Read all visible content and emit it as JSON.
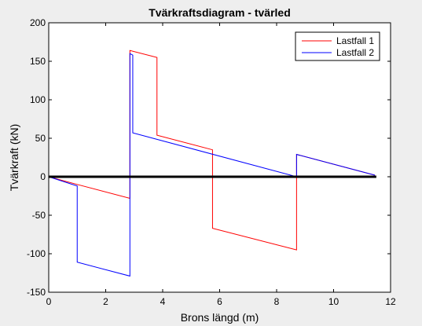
{
  "chart_data": {
    "type": "line",
    "title": "Tvärkraftsdiagram - tvärled",
    "xlabel": "Brons längd (m)",
    "ylabel": "Tvärkraft (kN)",
    "xlim": [
      0,
      12
    ],
    "ylim": [
      -150,
      200
    ],
    "xticks": [
      0,
      2,
      4,
      6,
      8,
      10,
      12
    ],
    "yticks": [
      -150,
      -100,
      -50,
      0,
      50,
      100,
      150,
      200
    ],
    "grid": false,
    "legend_position": "top-right",
    "series": [
      {
        "name": "Lastfall 1",
        "color": "#ff0000",
        "x": [
          0,
          1.0,
          1.0,
          2.85,
          2.85,
          3.8,
          3.8,
          5.75,
          5.75,
          8.7,
          8.7,
          11.45
        ],
        "y": [
          0,
          -10,
          -10,
          -28,
          164,
          155,
          54,
          35,
          -67,
          -95,
          29,
          2
        ]
      },
      {
        "name": "Lastfall 2",
        "color": "#0000ff",
        "x": [
          0,
          1.0,
          1.0,
          2.85,
          2.85,
          2.95,
          2.95,
          8.7,
          8.7,
          11.45
        ],
        "y": [
          0,
          -12,
          -111,
          -129,
          160,
          158,
          57,
          0,
          29,
          2
        ]
      },
      {
        "name": "",
        "color": "#000000",
        "x": [
          0,
          11.5
        ],
        "y": [
          0,
          0
        ]
      }
    ]
  }
}
